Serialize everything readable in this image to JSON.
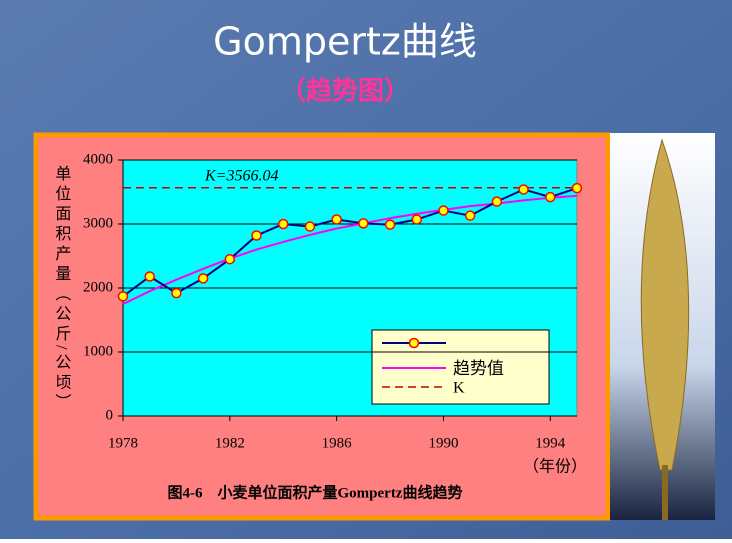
{
  "title": "Gompertz曲线",
  "subtitle": "（趋势图）",
  "chart_data": {
    "type": "line",
    "y_label": "单位面积产量（公斤/公顷）",
    "x_label": "（年份）",
    "caption": "图4-6　小麦单位面积产量Gompertz曲线趋势",
    "annotation": "K=3566.04",
    "x": [
      1978,
      1979,
      1980,
      1981,
      1982,
      1983,
      1984,
      1985,
      1986,
      1987,
      1988,
      1989,
      1990,
      1991,
      1992,
      1993,
      1994,
      1995
    ],
    "series": [
      {
        "color": "#000080",
        "marker_color": "#ffff00",
        "values": [
          1870,
          2180,
          1920,
          2150,
          2450,
          2820,
          3000,
          2960,
          3070,
          3010,
          2990,
          3070,
          3210,
          3130,
          3350,
          3540,
          3420,
          3560
        ]
      },
      {
        "name": "趋势值",
        "color": "#ff00ff",
        "values": [
          1750,
          1950,
          2130,
          2300,
          2460,
          2600,
          2720,
          2830,
          2930,
          3010,
          3090,
          3160,
          3220,
          3280,
          3320,
          3370,
          3410,
          3440
        ]
      }
    ],
    "k_line": {
      "name": "K",
      "value": 3566.04,
      "color": "#c00000"
    },
    "xlim": [
      1978,
      1995
    ],
    "xticks": [
      1978,
      1982,
      1986,
      1990,
      1994
    ],
    "ylim": [
      0,
      4000
    ],
    "yticks": [
      0,
      1000,
      2000,
      3000,
      4000
    ],
    "grid": true
  }
}
